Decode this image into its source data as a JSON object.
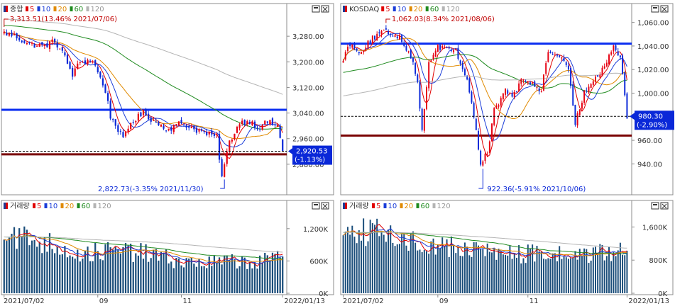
{
  "chart_data": [
    {
      "type": "candlestick",
      "legend": {
        "main": "종합",
        "mas": [
          {
            "label": "5",
            "color": "#e00000"
          },
          {
            "label": "10",
            "color": "#1a3cd8"
          },
          {
            "label": "20",
            "color": "#e08a00"
          },
          {
            "label": "60",
            "color": "#1e8a1e"
          },
          {
            "label": "120",
            "color": "#b4b4b4"
          }
        ]
      },
      "ylim": [
        2800,
        3360
      ],
      "yticks": [
        {
          "value": 3280,
          "label": "3,280.00"
        },
        {
          "value": 3200,
          "label": "3,200.00"
        },
        {
          "value": 3120,
          "label": "3,120.00"
        },
        {
          "value": 3040,
          "label": "3,040.00"
        },
        {
          "value": 2960,
          "label": "2,960.00"
        },
        {
          "value": 2880,
          "label": "2,880.00"
        }
      ],
      "hlines": [
        {
          "value": 3050,
          "color": "#0a2df0"
        },
        {
          "value": 2911,
          "color": "#7a0000"
        }
      ],
      "dashed_level": 2920.53,
      "current": {
        "value": 2920.53,
        "price": "2,920.53",
        "change": "(-1.13%)"
      },
      "high_note": "3,313.51(13.46% 2021/07/06)",
      "low_note": "2,822.73(-3.35% 2021/11/30)",
      "anchors": [
        [
          0,
          3290
        ],
        [
          4,
          3282
        ],
        [
          10,
          3254
        ],
        [
          16,
          3250
        ],
        [
          20,
          3265
        ],
        [
          23,
          3230
        ],
        [
          27,
          3160
        ],
        [
          30,
          3200
        ],
        [
          35,
          3205
        ],
        [
          40,
          3110
        ],
        [
          42,
          3030
        ],
        [
          45,
          2990
        ],
        [
          47,
          2955
        ],
        [
          50,
          3010
        ],
        [
          55,
          3040
        ],
        [
          60,
          3010
        ],
        [
          65,
          2990
        ],
        [
          70,
          3010
        ],
        [
          75,
          2990
        ],
        [
          80,
          2975
        ],
        [
          84,
          2965
        ],
        [
          86,
          2840
        ],
        [
          89,
          2950
        ],
        [
          93,
          3010
        ],
        [
          97,
          3015
        ],
        [
          100,
          2995
        ],
        [
          104,
          3012
        ],
        [
          108,
          3000
        ],
        [
          110,
          2920
        ]
      ],
      "volume": {
        "legend": "거래량",
        "ylim": [
          0,
          1500
        ],
        "yticks": [
          {
            "value": 1200,
            "label": "1,200K"
          },
          {
            "value": 600,
            "label": "600K"
          },
          {
            "value": 0,
            "label": "0K"
          }
        ],
        "anchors": [
          [
            0,
            1150
          ],
          [
            10,
            1000
          ],
          [
            20,
            900
          ],
          [
            30,
            720
          ],
          [
            40,
            780
          ],
          [
            50,
            780
          ],
          [
            60,
            700
          ],
          [
            70,
            580
          ],
          [
            80,
            560
          ],
          [
            90,
            600
          ],
          [
            100,
            570
          ],
          [
            110,
            680
          ]
        ]
      },
      "xlabels": [
        {
          "idx": 0,
          "label": "2021/07/02"
        },
        {
          "idx": 37,
          "label": "09"
        },
        {
          "idx": 70,
          "label": "11"
        },
        {
          "idx": 110,
          "label": "2022/01/13"
        }
      ]
    },
    {
      "type": "candlestick",
      "legend": {
        "main": "KOSDAQ",
        "mas": [
          {
            "label": "5",
            "color": "#e00000"
          },
          {
            "label": "10",
            "color": "#1a3cd8"
          },
          {
            "label": "20",
            "color": "#e08a00"
          },
          {
            "label": "60",
            "color": "#1e8a1e"
          },
          {
            "label": "120",
            "color": "#b4b4b4"
          }
        ]
      },
      "ylim": [
        918,
        1070
      ],
      "yticks": [
        {
          "value": 1060,
          "label": "1,060.00"
        },
        {
          "value": 1040,
          "label": "1,040.00"
        },
        {
          "value": 1020,
          "label": "1,020.00"
        },
        {
          "value": 1000,
          "label": "1,000.00"
        },
        {
          "value": 960,
          "label": "960.00"
        },
        {
          "value": 940,
          "label": "940.00"
        }
      ],
      "hlines": [
        {
          "value": 1042,
          "color": "#0a2df0"
        },
        {
          "value": 964,
          "color": "#7a0000"
        }
      ],
      "dashed_level": 980.3,
      "current": {
        "value": 980.3,
        "price": "980.30",
        "change": "(-2.90%)"
      },
      "high_note": "1,062.03(8.34% 2021/08/06)",
      "low_note": "922.36(-5.91% 2021/10/06)",
      "anchors": [
        [
          0,
          1030
        ],
        [
          3,
          1042
        ],
        [
          8,
          1035
        ],
        [
          12,
          1045
        ],
        [
          18,
          1052
        ],
        [
          22,
          1050
        ],
        [
          25,
          1048
        ],
        [
          30,
          1032
        ],
        [
          33,
          1008
        ],
        [
          35,
          970
        ],
        [
          38,
          1025
        ],
        [
          41,
          1038
        ],
        [
          45,
          1040
        ],
        [
          50,
          1035
        ],
        [
          55,
          1012
        ],
        [
          58,
          980
        ],
        [
          61,
          940
        ],
        [
          64,
          950
        ],
        [
          67,
          985
        ],
        [
          72,
          1002
        ],
        [
          75,
          998
        ],
        [
          80,
          1012
        ],
        [
          85,
          1006
        ],
        [
          88,
          1003
        ],
        [
          91,
          1035
        ],
        [
          96,
          1032
        ],
        [
          100,
          1018
        ],
        [
          103,
          975
        ],
        [
          107,
          1000
        ],
        [
          111,
          1012
        ],
        [
          115,
          1020
        ],
        [
          117,
          1028
        ],
        [
          120,
          1040
        ],
        [
          123,
          1030
        ],
        [
          125,
          1000
        ],
        [
          126,
          980
        ]
      ],
      "volume": {
        "legend": "거래량",
        "ylim": [
          0,
          1950
        ],
        "yticks": [
          {
            "value": 1600,
            "label": "1,600K"
          },
          {
            "value": 800,
            "label": "800K"
          },
          {
            "value": 0,
            "label": "0K"
          }
        ],
        "anchors": [
          [
            0,
            1650
          ],
          [
            10,
            1500
          ],
          [
            20,
            1400
          ],
          [
            30,
            1250
          ],
          [
            40,
            1200
          ],
          [
            50,
            1080
          ],
          [
            60,
            1050
          ],
          [
            70,
            980
          ],
          [
            80,
            940
          ],
          [
            90,
            950
          ],
          [
            100,
            920
          ],
          [
            110,
            950
          ],
          [
            120,
            960
          ],
          [
            126,
            1120
          ]
        ]
      },
      "xlabels": [
        {
          "idx": 0,
          "label": "2021/07/02"
        },
        {
          "idx": 42,
          "label": "09"
        },
        {
          "idx": 82,
          "label": "11"
        },
        {
          "idx": 126,
          "label": "2022/01/13"
        }
      ]
    }
  ]
}
